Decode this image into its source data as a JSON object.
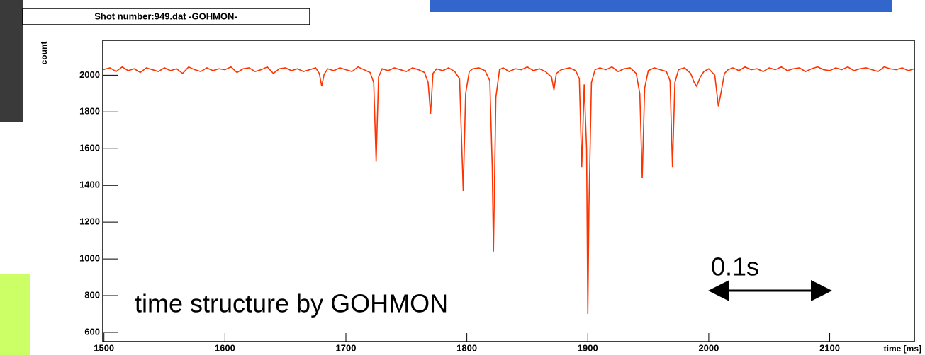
{
  "chart_data": {
    "type": "line",
    "title": "Shot number:949.dat  -GOHMON-",
    "y_label": "count",
    "x_label": "time [ms]",
    "annotations": [
      "time structure by GOHMON",
      "0.1s"
    ],
    "xlim": [
      1499,
      2170
    ],
    "ylim": [
      550,
      2190
    ],
    "xticks": [
      1500,
      1600,
      1700,
      1800,
      1900,
      2000,
      2100
    ],
    "yticks": [
      600,
      800,
      1000,
      1200,
      1400,
      1600,
      1800,
      2000
    ],
    "series": [
      {
        "color": "#ff3300",
        "x": [
          1499,
          1505,
          1510,
          1515,
          1520,
          1525,
          1530,
          1535,
          1540,
          1545,
          1550,
          1555,
          1560,
          1565,
          1570,
          1575,
          1580,
          1585,
          1590,
          1595,
          1600,
          1605,
          1610,
          1615,
          1620,
          1625,
          1630,
          1635,
          1640,
          1645,
          1650,
          1655,
          1660,
          1665,
          1670,
          1675,
          1678,
          1680,
          1682,
          1685,
          1690,
          1695,
          1700,
          1705,
          1710,
          1715,
          1720,
          1723,
          1725,
          1727,
          1730,
          1735,
          1740,
          1745,
          1750,
          1755,
          1760,
          1765,
          1768,
          1770,
          1772,
          1775,
          1780,
          1785,
          1790,
          1794,
          1797,
          1799,
          1802,
          1805,
          1810,
          1815,
          1819,
          1821,
          1822,
          1824,
          1827,
          1830,
          1835,
          1840,
          1845,
          1850,
          1855,
          1860,
          1865,
          1870,
          1872,
          1874,
          1878,
          1885,
          1890,
          1893,
          1895,
          1897,
          1899,
          1900,
          1901,
          1903,
          1906,
          1910,
          1915,
          1920,
          1925,
          1930,
          1935,
          1940,
          1943,
          1945,
          1947,
          1950,
          1955,
          1960,
          1965,
          1968,
          1970,
          1972,
          1975,
          1980,
          1985,
          1988,
          1990,
          1993,
          1996,
          2000,
          2005,
          2008,
          2010,
          2013,
          2016,
          2020,
          2025,
          2030,
          2035,
          2040,
          2045,
          2050,
          2055,
          2060,
          2065,
          2070,
          2075,
          2080,
          2085,
          2090,
          2095,
          2100,
          2105,
          2110,
          2115,
          2120,
          2125,
          2130,
          2135,
          2140,
          2145,
          2150,
          2155,
          2160,
          2165,
          2170
        ],
        "values": [
          2030,
          2040,
          2020,
          2045,
          2025,
          2035,
          2015,
          2040,
          2030,
          2020,
          2040,
          2025,
          2035,
          2010,
          2045,
          2030,
          2020,
          2040,
          2025,
          2035,
          2030,
          2045,
          2015,
          2035,
          2040,
          2020,
          2030,
          2045,
          2010,
          2035,
          2040,
          2025,
          2035,
          2020,
          2030,
          2040,
          2010,
          1940,
          2005,
          2035,
          2025,
          2040,
          2030,
          2020,
          2045,
          2030,
          2015,
          1960,
          1530,
          1990,
          2035,
          2025,
          2040,
          2030,
          2020,
          2040,
          2030,
          2015,
          1960,
          1790,
          2010,
          2035,
          2025,
          2040,
          2020,
          1980,
          1370,
          1900,
          2020,
          2035,
          2040,
          2025,
          1970,
          1500,
          1040,
          1880,
          2030,
          2040,
          2020,
          2035,
          2030,
          2045,
          2025,
          2035,
          2020,
          1990,
          1920,
          2010,
          2030,
          2040,
          2025,
          1980,
          1500,
          1950,
          1600,
          700,
          1300,
          1960,
          2030,
          2040,
          2030,
          2045,
          2020,
          2035,
          2040,
          2010,
          1900,
          1440,
          1930,
          2025,
          2040,
          2030,
          2020,
          1970,
          1500,
          1960,
          2030,
          2040,
          2010,
          1960,
          1940,
          1990,
          2020,
          2035,
          2000,
          1830,
          1900,
          2010,
          2030,
          2040,
          2025,
          2045,
          2030,
          2035,
          2020,
          2040,
          2030,
          2045,
          2025,
          2035,
          2040,
          2020,
          2035,
          2045,
          2030,
          2025,
          2040,
          2030,
          2045,
          2025,
          2035,
          2040,
          2030,
          2020,
          2045,
          2035,
          2030,
          2040,
          2025,
          2035
        ]
      }
    ]
  }
}
